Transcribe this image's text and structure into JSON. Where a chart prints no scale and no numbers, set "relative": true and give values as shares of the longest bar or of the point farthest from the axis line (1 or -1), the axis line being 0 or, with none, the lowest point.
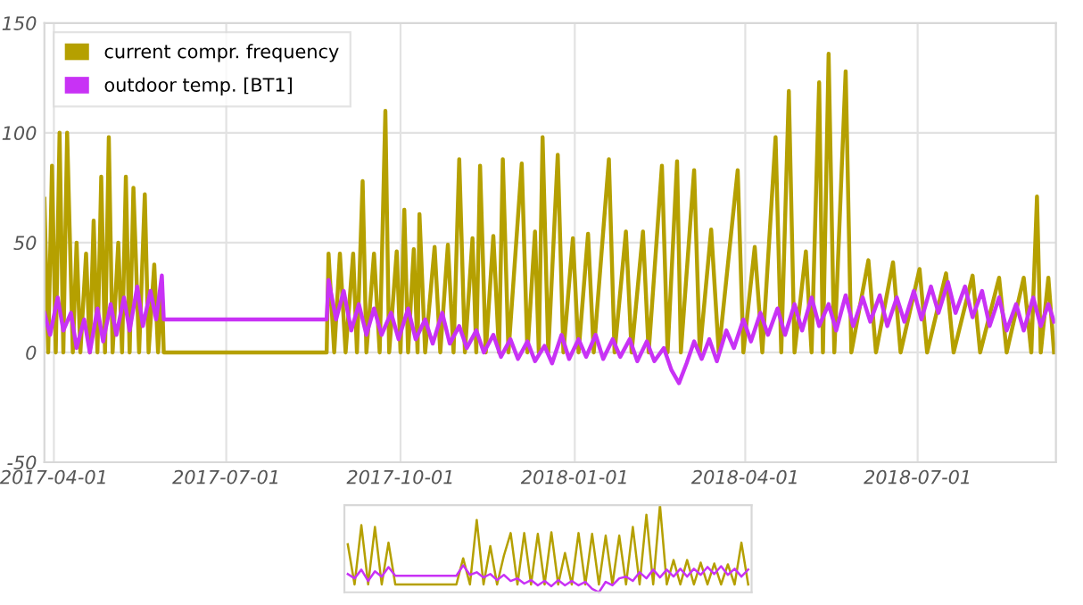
{
  "chart_data": [
    {
      "type": "line",
      "legend": "top left",
      "grid": true,
      "marker": "none",
      "line_style": "solid",
      "xlim": [
        "2017-03-27",
        "2018-09-12"
      ],
      "xticks": [
        "2017-04-01",
        "2017-07-01",
        "2017-10-01",
        "2018-01-01",
        "2018-04-01",
        "2018-07-01"
      ],
      "ylim": [
        -50,
        150
      ],
      "yticks": [
        -50,
        0,
        50,
        100,
        150
      ],
      "series": [
        {
          "name": "current compr. frequency",
          "color": "#b5a000",
          "x": [
            "2017-03-27",
            "2017-03-29",
            "2017-03-31",
            "2017-04-02",
            "2017-04-04",
            "2017-04-06",
            "2017-04-08",
            "2017-04-11",
            "2017-04-13",
            "2017-04-15",
            "2017-04-18",
            "2017-04-20",
            "2017-04-22",
            "2017-04-24",
            "2017-04-26",
            "2017-04-28",
            "2017-04-30",
            "2017-05-02",
            "2017-05-05",
            "2017-05-07",
            "2017-05-09",
            "2017-05-11",
            "2017-05-13",
            "2017-05-16",
            "2017-05-19",
            "2017-05-21",
            "2017-05-24",
            "2017-05-26",
            "2017-05-28",
            "2017-05-29",
            "2017-08-23",
            "2017-08-24",
            "2017-08-27",
            "2017-08-30",
            "2017-09-02",
            "2017-09-06",
            "2017-09-08",
            "2017-09-11",
            "2017-09-13",
            "2017-09-17",
            "2017-09-20",
            "2017-09-23",
            "2017-09-25",
            "2017-09-29",
            "2017-10-01",
            "2017-10-03",
            "2017-10-05",
            "2017-10-08",
            "2017-10-10",
            "2017-10-11",
            "2017-10-14",
            "2017-10-19",
            "2017-10-22",
            "2017-10-26",
            "2017-10-29",
            "2017-11-01",
            "2017-11-04",
            "2017-11-08",
            "2017-11-10",
            "2017-11-12",
            "2017-11-15",
            "2017-11-19",
            "2017-11-22",
            "2017-11-24",
            "2017-11-27",
            "2017-12-04",
            "2017-12-07",
            "2017-12-11",
            "2017-12-13",
            "2017-12-15",
            "2017-12-18",
            "2017-12-23",
            "2017-12-26",
            "2017-12-31",
            "2018-01-03",
            "2018-01-08",
            "2018-01-11",
            "2018-01-19",
            "2018-01-22",
            "2018-01-28",
            "2018-01-31",
            "2018-02-06",
            "2018-02-09",
            "2018-02-16",
            "2018-02-19",
            "2018-02-24",
            "2018-02-26",
            "2018-03-05",
            "2018-03-08",
            "2018-03-14",
            "2018-03-18",
            "2018-03-28",
            "2018-03-31",
            "2018-04-06",
            "2018-04-10",
            "2018-04-17",
            "2018-04-20",
            "2018-04-24",
            "2018-04-27",
            "2018-05-03",
            "2018-05-06",
            "2018-05-10",
            "2018-05-12",
            "2018-05-15",
            "2018-05-18",
            "2018-05-24",
            "2018-05-27",
            "2018-06-05",
            "2018-06-09",
            "2018-06-18",
            "2018-06-22",
            "2018-07-02",
            "2018-07-06",
            "2018-07-16",
            "2018-07-20",
            "2018-07-30",
            "2018-08-03",
            "2018-08-13",
            "2018-08-17",
            "2018-08-26",
            "2018-08-30",
            "2018-09-02",
            "2018-09-04",
            "2018-09-08",
            "2018-09-11"
          ],
          "values": [
            70,
            0,
            85,
            0,
            100,
            0,
            100,
            0,
            50,
            0,
            45,
            0,
            60,
            0,
            80,
            0,
            98,
            0,
            50,
            0,
            80,
            0,
            75,
            0,
            72,
            0,
            40,
            0,
            30,
            0,
            0,
            45,
            0,
            45,
            0,
            45,
            0,
            78,
            0,
            45,
            0,
            110,
            0,
            46,
            0,
            65,
            0,
            47,
            0,
            63,
            0,
            48,
            0,
            49,
            0,
            88,
            0,
            52,
            0,
            85,
            0,
            53,
            0,
            88,
            0,
            86,
            0,
            55,
            0,
            98,
            0,
            90,
            0,
            52,
            0,
            54,
            0,
            88,
            0,
            55,
            0,
            55,
            0,
            85,
            0,
            87,
            0,
            83,
            0,
            56,
            0,
            83,
            0,
            48,
            0,
            98,
            0,
            119,
            0,
            46,
            0,
            123,
            0,
            136,
            0,
            128,
            0,
            42,
            0,
            41,
            0,
            38,
            0,
            36,
            0,
            35,
            0,
            34,
            0,
            34,
            0,
            71,
            0,
            34,
            0
          ]
        },
        {
          "name": "outdoor temp. [BT1]",
          "color": "#c832f5",
          "x": [
            "2017-03-27",
            "2017-03-30",
            "2017-04-03",
            "2017-04-06",
            "2017-04-10",
            "2017-04-13",
            "2017-04-17",
            "2017-04-20",
            "2017-04-24",
            "2017-04-27",
            "2017-05-01",
            "2017-05-04",
            "2017-05-08",
            "2017-05-11",
            "2017-05-15",
            "2017-05-18",
            "2017-05-22",
            "2017-05-25",
            "2017-05-28",
            "2017-05-29",
            "2017-08-23",
            "2017-08-24",
            "2017-08-28",
            "2017-09-01",
            "2017-09-05",
            "2017-09-09",
            "2017-09-13",
            "2017-09-17",
            "2017-09-21",
            "2017-09-26",
            "2017-09-30",
            "2017-10-05",
            "2017-10-09",
            "2017-10-14",
            "2017-10-18",
            "2017-10-23",
            "2017-10-27",
            "2017-11-01",
            "2017-11-05",
            "2017-11-10",
            "2017-11-14",
            "2017-11-19",
            "2017-11-23",
            "2017-11-28",
            "2017-12-02",
            "2017-12-07",
            "2017-12-11",
            "2017-12-16",
            "2017-12-20",
            "2017-12-25",
            "2017-12-29",
            "2018-01-03",
            "2018-01-07",
            "2018-01-12",
            "2018-01-16",
            "2018-01-21",
            "2018-01-25",
            "2018-01-30",
            "2018-02-03",
            "2018-02-08",
            "2018-02-12",
            "2018-02-17",
            "2018-02-21",
            "2018-02-25",
            "2018-03-01",
            "2018-03-05",
            "2018-03-09",
            "2018-03-13",
            "2018-03-17",
            "2018-03-22",
            "2018-03-26",
            "2018-03-31",
            "2018-04-04",
            "2018-04-09",
            "2018-04-13",
            "2018-04-18",
            "2018-04-22",
            "2018-04-27",
            "2018-05-01",
            "2018-05-06",
            "2018-05-10",
            "2018-05-15",
            "2018-05-19",
            "2018-05-24",
            "2018-05-28",
            "2018-06-02",
            "2018-06-06",
            "2018-06-11",
            "2018-06-15",
            "2018-06-20",
            "2018-06-24",
            "2018-06-29",
            "2018-07-03",
            "2018-07-08",
            "2018-07-12",
            "2018-07-17",
            "2018-07-21",
            "2018-07-26",
            "2018-07-30",
            "2018-08-04",
            "2018-08-08",
            "2018-08-13",
            "2018-08-17",
            "2018-08-22",
            "2018-08-26",
            "2018-08-31",
            "2018-09-04",
            "2018-09-08",
            "2018-09-11"
          ],
          "values": [
            18,
            8,
            25,
            10,
            18,
            2,
            15,
            0,
            20,
            5,
            22,
            8,
            25,
            10,
            30,
            12,
            28,
            15,
            35,
            15,
            15,
            33,
            15,
            28,
            10,
            22,
            8,
            20,
            8,
            18,
            6,
            20,
            6,
            15,
            4,
            18,
            4,
            12,
            2,
            10,
            0,
            8,
            -2,
            6,
            -3,
            5,
            -4,
            3,
            -5,
            8,
            -3,
            6,
            -2,
            8,
            -3,
            6,
            -2,
            6,
            -4,
            5,
            -4,
            2,
            -8,
            -14,
            -5,
            5,
            -3,
            6,
            -4,
            10,
            2,
            15,
            5,
            18,
            8,
            20,
            8,
            22,
            10,
            25,
            12,
            22,
            10,
            26,
            12,
            25,
            14,
            26,
            12,
            25,
            14,
            28,
            15,
            30,
            18,
            32,
            18,
            30,
            16,
            28,
            12,
            25,
            10,
            22,
            10,
            25,
            12,
            22,
            14
          ]
        }
      ]
    },
    {
      "type": "line",
      "relative": true,
      "marker": "none",
      "line_style": "solid",
      "categories": [
        null,
        null,
        null,
        null,
        null,
        null,
        null,
        null,
        null,
        null,
        null,
        null,
        null,
        null,
        null,
        null,
        null,
        null,
        null,
        null,
        null,
        null,
        null,
        null,
        null,
        null,
        null,
        null,
        null,
        null,
        null,
        null,
        null,
        null,
        null,
        null,
        null,
        null,
        null,
        null,
        null,
        null,
        null,
        null,
        null,
        null,
        null,
        null,
        null,
        null,
        null,
        null,
        null,
        null,
        null,
        null,
        null,
        null,
        null,
        null
      ],
      "series": [
        {
          "color": "#b5a000",
          "values": [
            0.55,
            0.09,
            0.77,
            0.09,
            0.75,
            0.09,
            0.57,
            0.09,
            0.09,
            0.09,
            0.09,
            0.09,
            0.09,
            0.09,
            0.09,
            0.09,
            0.09,
            0.39,
            0.09,
            0.83,
            0.09,
            0.53,
            0.09,
            0.42,
            0.68,
            0.09,
            0.68,
            0.09,
            0.67,
            0.09,
            0.69,
            0.09,
            0.45,
            0.09,
            0.68,
            0.09,
            0.67,
            0.09,
            0.65,
            0.09,
            0.65,
            0.09,
            0.75,
            0.09,
            0.89,
            0.09,
            1,
            0.09,
            0.37,
            0.09,
            0.37,
            0.09,
            0.34,
            0.09,
            0.33,
            0.09,
            0.32,
            0.09,
            0.57,
            0.09
          ]
        },
        {
          "color": "#c832f5",
          "values": [
            0.21,
            0.16,
            0.26,
            0.13,
            0.24,
            0.18,
            0.29,
            0.19,
            0.19,
            0.19,
            0.19,
            0.19,
            0.19,
            0.19,
            0.19,
            0.19,
            0.19,
            0.31,
            0.2,
            0.23,
            0.17,
            0.21,
            0.14,
            0.2,
            0.13,
            0.16,
            0.1,
            0.14,
            0.08,
            0.13,
            0.07,
            0.14,
            0.08,
            0.13,
            0.08,
            0.12,
            0.04,
            0,
            0.12,
            0.08,
            0.16,
            0.18,
            0.13,
            0.23,
            0.16,
            0.26,
            0.17,
            0.26,
            0.18,
            0.27,
            0.18,
            0.27,
            0.2,
            0.29,
            0.21,
            0.3,
            0.2,
            0.27,
            0.18,
            0.26
          ]
        }
      ]
    }
  ]
}
